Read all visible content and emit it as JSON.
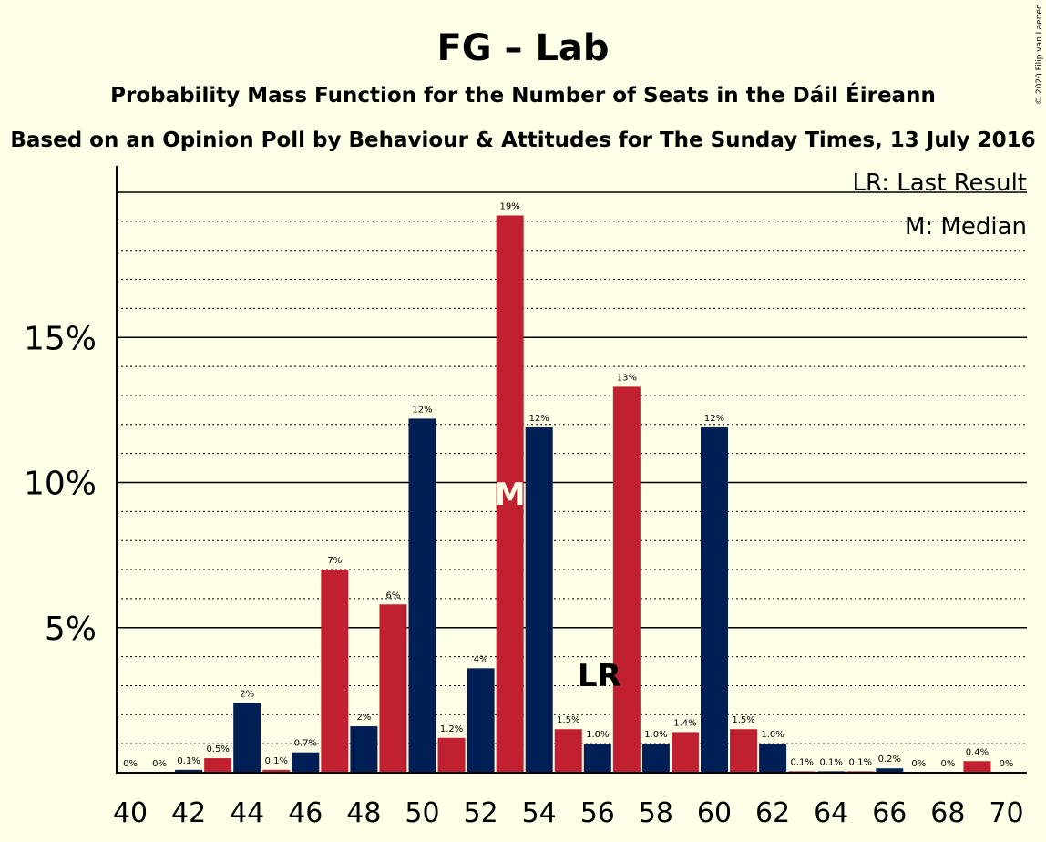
{
  "chart_data": {
    "type": "bar",
    "title": "FG – Lab",
    "subtitle": "Probability Mass Function for the Number of Seats in the Dáil Éireann",
    "subtitle2": "Based on an Opinion Poll by Behaviour & Attitudes for The Sunday Times, 13 July 2016",
    "copyright": "© 2020 Filip van Laenen",
    "legend": {
      "position": "top-right",
      "entries": [
        "LR: Last Result",
        "M: Median"
      ]
    },
    "xlabel": "",
    "ylabel": "",
    "x": [
      40,
      41,
      42,
      43,
      44,
      45,
      46,
      47,
      48,
      49,
      50,
      51,
      52,
      53,
      54,
      55,
      56,
      57,
      58,
      59,
      60,
      61,
      62,
      63,
      64,
      65,
      66,
      67,
      68,
      69,
      70
    ],
    "values": [
      0,
      0,
      0.1,
      0.5,
      2.4,
      0.1,
      0.7,
      7.0,
      1.6,
      5.8,
      12.2,
      1.2,
      3.6,
      19.2,
      11.9,
      1.5,
      1.0,
      13.3,
      1.0,
      1.4,
      11.9,
      1.5,
      1.0,
      0.05,
      0.05,
      0.05,
      0.15,
      0,
      0,
      0.4,
      0
    ],
    "labels": [
      "0%",
      "0%",
      "0.1%",
      "0.5%",
      "2%",
      "0.1%",
      "0.7%",
      "7%",
      "2%",
      "6%",
      "12%",
      "1.2%",
      "4%",
      "19%",
      "12%",
      "1.5%",
      "1.0%",
      "13%",
      "1.0%",
      "1.4%",
      "12%",
      "1.5%",
      "1.0%",
      "0.1%",
      "0.1%",
      "0.1%",
      "0.2%",
      "0%",
      "0%",
      "0.4%",
      "0%"
    ],
    "xticks": [
      40,
      42,
      44,
      46,
      48,
      50,
      52,
      54,
      56,
      58,
      60,
      62,
      64,
      66,
      68,
      70
    ],
    "yticks": [
      {
        "value": 5,
        "label": "5%"
      },
      {
        "value": 10,
        "label": "10%"
      },
      {
        "value": 15,
        "label": "15%"
      }
    ],
    "ylim": [
      0,
      20.5
    ],
    "median": 53,
    "median_label": "M",
    "last_result": 56,
    "last_result_label": "LR",
    "colors": {
      "even": "#001F54",
      "odd": "#C0202F",
      "median_text": "#FFFEE6",
      "background": "#FFFEE6"
    }
  }
}
